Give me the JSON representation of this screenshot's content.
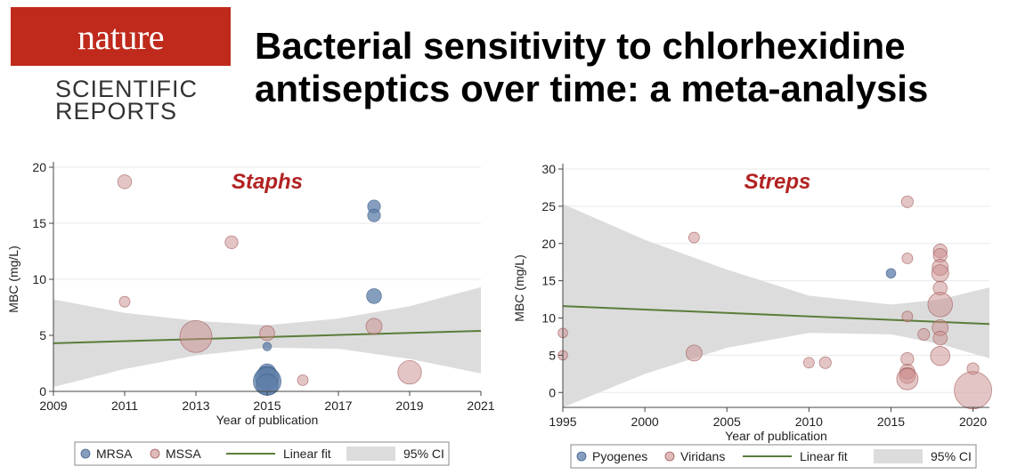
{
  "journal": {
    "name": "nature",
    "sub1": "SCIENTIFIC",
    "sub2": "REPORTS"
  },
  "headline": "Bacterial sensitivity to chlorhexidine antiseptics over time: a meta-analysis",
  "colors": {
    "brand": "#bf2a1c",
    "accent_title": "#b22222",
    "group_a": "#5d7ea8",
    "group_b": "#c98c8c",
    "fit": "#5a7d3a",
    "ci": "#dcdcdc"
  },
  "chart_data": [
    {
      "type": "scatter",
      "title": "Staphs",
      "xlabel": "Year of publication",
      "ylabel": "MBC (mg/L)",
      "xlim": [
        2009,
        2021
      ],
      "ylim": [
        0,
        20
      ],
      "xticks": [
        2009,
        2011,
        2013,
        2015,
        2017,
        2019,
        2021
      ],
      "yticks": [
        0,
        5,
        10,
        15,
        20
      ],
      "legend": [
        "MRSA",
        "MSSA",
        "Linear fit",
        "95% CI"
      ],
      "legend_position": "bottom",
      "series": [
        {
          "name": "MRSA",
          "points": [
            {
              "x": 2018,
              "y": 16.5,
              "w": 1.2
            },
            {
              "x": 2018,
              "y": 15.7,
              "w": 1.2
            },
            {
              "x": 2018,
              "y": 8.5,
              "w": 1.4
            },
            {
              "x": 2015,
              "y": 4.0,
              "w": 0.8
            },
            {
              "x": 2015,
              "y": 1.7,
              "w": 1.6
            },
            {
              "x": 2015,
              "y": 1.2,
              "w": 2.2
            },
            {
              "x": 2015,
              "y": 0.9,
              "w": 2.6
            },
            {
              "x": 2015,
              "y": 0.6,
              "w": 2.0
            }
          ]
        },
        {
          "name": "MSSA",
          "points": [
            {
              "x": 2011,
              "y": 18.7,
              "w": 1.3
            },
            {
              "x": 2011,
              "y": 8.0,
              "w": 1.0
            },
            {
              "x": 2014,
              "y": 13.3,
              "w": 1.2
            },
            {
              "x": 2013,
              "y": 4.9,
              "w": 3.0
            },
            {
              "x": 2015,
              "y": 5.2,
              "w": 1.4
            },
            {
              "x": 2016,
              "y": 1.0,
              "w": 1.0
            },
            {
              "x": 2018,
              "y": 5.8,
              "w": 1.5
            },
            {
              "x": 2019,
              "y": 1.7,
              "w": 2.2
            }
          ]
        }
      ],
      "fit": {
        "x": [
          2009,
          2021
        ],
        "y": [
          4.3,
          5.4
        ]
      },
      "ci": {
        "x": [
          2009,
          2011,
          2013,
          2015,
          2017,
          2019,
          2021
        ],
        "lower": [
          0.4,
          2.0,
          3.2,
          3.9,
          3.8,
          2.9,
          1.6
        ],
        "upper": [
          8.2,
          7.0,
          6.3,
          5.9,
          6.5,
          7.6,
          9.3
        ]
      }
    },
    {
      "type": "scatter",
      "title": "Streps",
      "xlabel": "Year of publication",
      "ylabel": "MBC (mg/L)",
      "xlim": [
        1995,
        2021
      ],
      "ylim": [
        -2,
        30
      ],
      "xticks": [
        1995,
        2000,
        2005,
        2010,
        2015,
        2020
      ],
      "yticks": [
        0,
        5,
        10,
        15,
        20,
        25,
        30
      ],
      "legend": [
        "Pyogenes",
        "Viridans",
        "Linear fit",
        "95% CI"
      ],
      "legend_position": "bottom",
      "series": [
        {
          "name": "Pyogenes",
          "points": [
            {
              "x": 2015,
              "y": 16.0,
              "w": 0.9
            }
          ]
        },
        {
          "name": "Viridans",
          "points": [
            {
              "x": 1995,
              "y": 8.0,
              "w": 0.9
            },
            {
              "x": 1995,
              "y": 5.0,
              "w": 0.9
            },
            {
              "x": 2003,
              "y": 20.8,
              "w": 1.0
            },
            {
              "x": 2003,
              "y": 5.3,
              "w": 1.5
            },
            {
              "x": 2010,
              "y": 4.0,
              "w": 1.0
            },
            {
              "x": 2011,
              "y": 4.0,
              "w": 1.1
            },
            {
              "x": 2016,
              "y": 25.6,
              "w": 1.1
            },
            {
              "x": 2016,
              "y": 18.0,
              "w": 1.0
            },
            {
              "x": 2016,
              "y": 10.2,
              "w": 1.0
            },
            {
              "x": 2016,
              "y": 4.5,
              "w": 1.2
            },
            {
              "x": 2016,
              "y": 2.8,
              "w": 1.4
            },
            {
              "x": 2016,
              "y": 2.3,
              "w": 1.5
            },
            {
              "x": 2016,
              "y": 1.8,
              "w": 2.0
            },
            {
              "x": 2017,
              "y": 7.8,
              "w": 1.1
            },
            {
              "x": 2018,
              "y": 19.0,
              "w": 1.3
            },
            {
              "x": 2018,
              "y": 18.4,
              "w": 1.3
            },
            {
              "x": 2018,
              "y": 16.8,
              "w": 1.5
            },
            {
              "x": 2018,
              "y": 16.0,
              "w": 1.6
            },
            {
              "x": 2018,
              "y": 14.0,
              "w": 1.3
            },
            {
              "x": 2018,
              "y": 11.8,
              "w": 2.3
            },
            {
              "x": 2018,
              "y": 8.7,
              "w": 1.5
            },
            {
              "x": 2018,
              "y": 7.3,
              "w": 1.3
            },
            {
              "x": 2018,
              "y": 4.9,
              "w": 1.8
            },
            {
              "x": 2020,
              "y": 3.2,
              "w": 1.1
            },
            {
              "x": 2020,
              "y": 0.3,
              "w": 3.5
            }
          ]
        }
      ],
      "fit": {
        "x": [
          1995,
          2021
        ],
        "y": [
          11.6,
          9.2
        ]
      },
      "ci": {
        "x": [
          1995,
          2000,
          2005,
          2010,
          2015,
          2018,
          2021
        ],
        "lower": [
          -2.0,
          2.5,
          6.0,
          8.0,
          7.8,
          6.5,
          4.6
        ],
        "upper": [
          25.3,
          20.5,
          16.5,
          13.0,
          11.8,
          12.5,
          14.1
        ]
      }
    }
  ]
}
